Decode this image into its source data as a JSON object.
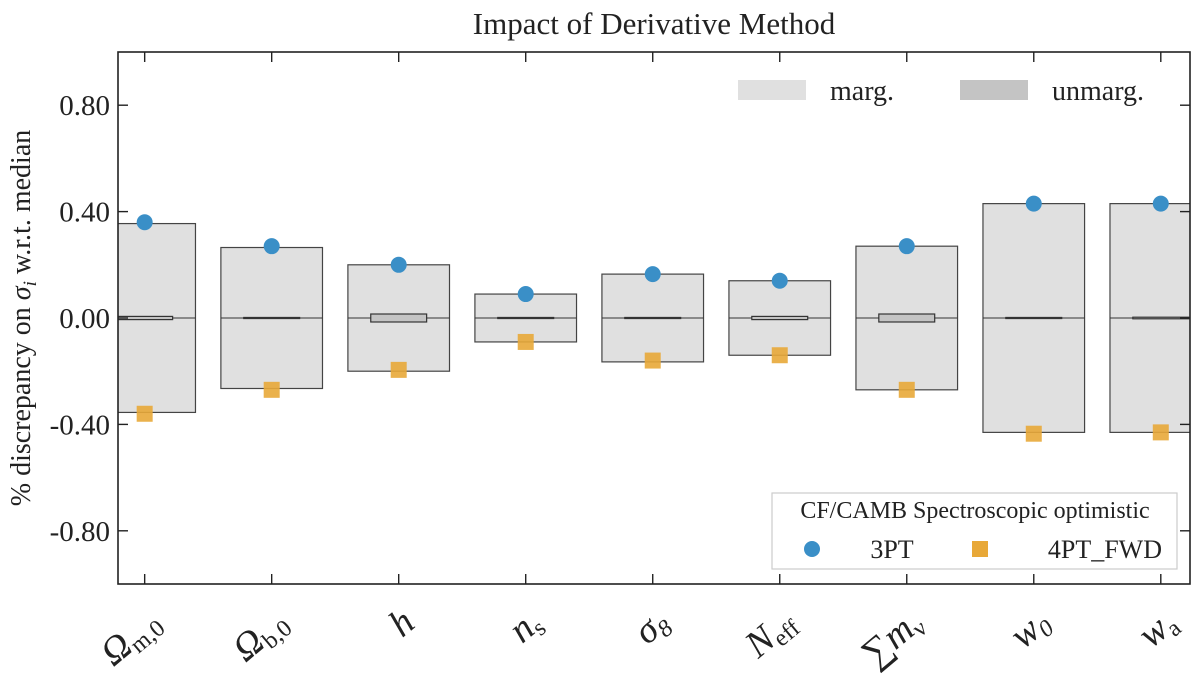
{
  "chart_data": {
    "type": "bar",
    "title": "Impact of Derivative Method",
    "ylabel": "% discrepancy on σ_i w.r.t. median",
    "ylabel_parts": {
      "pre": "% discrepancy on ",
      "sym": "σ",
      "sub": "i",
      "post": " w.r.t. median"
    },
    "ylim": [
      -1.0,
      1.0
    ],
    "yticks": [
      0.8,
      0.4,
      0.0,
      -0.4,
      -0.8
    ],
    "ytick_labels": [
      "0.80",
      "0.40",
      "0.00",
      "-0.40",
      "-0.80"
    ],
    "grid": false,
    "categories": [
      {
        "main": "Ω",
        "sub": "m,0"
      },
      {
        "main": "Ω",
        "sub": "b,0"
      },
      {
        "main": "h",
        "sub": ""
      },
      {
        "main": "n",
        "sub": "s"
      },
      {
        "main": "σ",
        "sub": "8"
      },
      {
        "main": "N",
        "sub": "eff"
      },
      {
        "main": "∑m",
        "sub": "ν"
      },
      {
        "main": "w",
        "sub": "0"
      },
      {
        "main": "w",
        "sub": "a"
      }
    ],
    "marg": [
      0.355,
      0.265,
      0.2,
      0.09,
      0.165,
      0.14,
      0.27,
      0.43,
      0.43
    ],
    "unmarg": [
      0.006,
      0.002,
      0.015,
      0.002,
      0.002,
      0.006,
      0.015,
      0.002,
      0.003
    ],
    "series": [
      {
        "name": "3PT",
        "marker": "circle",
        "color": "#3a8fc7",
        "values": [
          0.36,
          0.27,
          0.2,
          0.09,
          0.165,
          0.14,
          0.27,
          0.43,
          0.43
        ]
      },
      {
        "name": "4PT_FWD",
        "marker": "square",
        "color": "#e8a838",
        "values": [
          -0.36,
          -0.27,
          -0.195,
          -0.09,
          -0.16,
          -0.14,
          -0.27,
          -0.435,
          -0.43
        ]
      }
    ],
    "band_legend": [
      {
        "name": "marg.",
        "color": "#e0e0e0"
      },
      {
        "name": "unmarg.",
        "color": "#c4c4c4"
      }
    ],
    "legend_title": "CF/CAMB Spectroscopic optimistic",
    "legend_placement": "lower-right",
    "band_legend_placement": "upper-right"
  }
}
